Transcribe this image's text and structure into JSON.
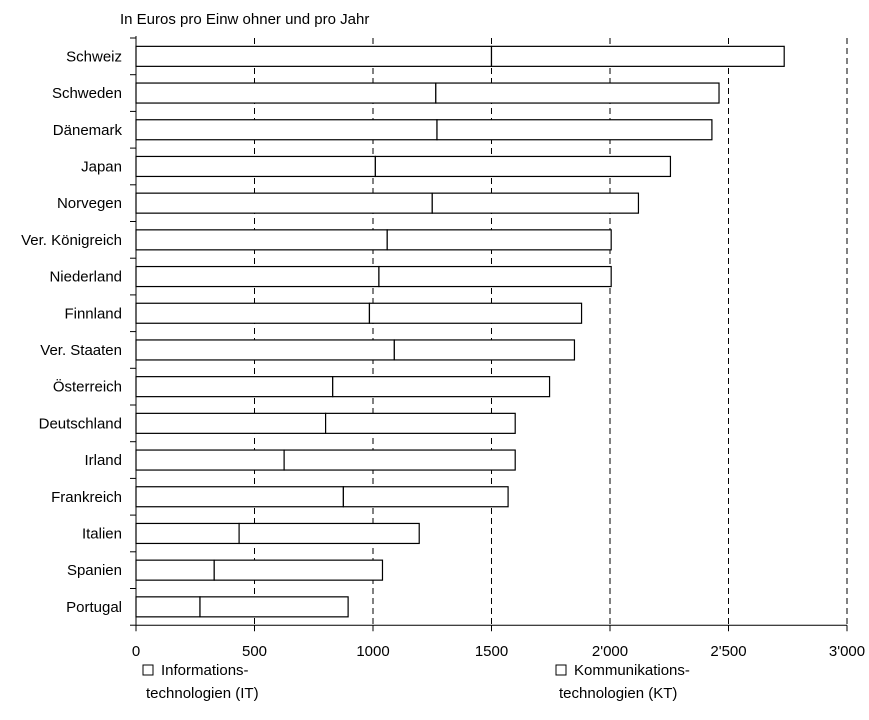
{
  "chart_data": {
    "type": "bar",
    "orientation": "horizontal",
    "stacked": true,
    "subtitle": "In Euros pro Einw ohner und pro Jahr",
    "categories": [
      "Schweiz",
      "Schweden",
      "Dänemark",
      "Japan",
      "Norvegen",
      "Ver. Königreich",
      "Niederland",
      "Finnland",
      "Ver. Staaten",
      "Österreich",
      "Deutschland",
      "Irland",
      "Frankreich",
      "Italien",
      "Spanien",
      "Portugal"
    ],
    "series": [
      {
        "name": "Informations-technologien (IT)",
        "legend_lines": [
          "Informations-",
          "technologien (IT)"
        ],
        "values": [
          1500,
          1265,
          1270,
          1010,
          1250,
          1060,
          1025,
          985,
          1090,
          830,
          800,
          625,
          875,
          435,
          330,
          270
        ]
      },
      {
        "name": "Kommunikations-technologien (KT)",
        "legend_lines": [
          "Kommunikations-",
          "technologien (KT)"
        ],
        "values": [
          1235,
          1195,
          1160,
          1245,
          870,
          945,
          980,
          895,
          760,
          915,
          800,
          975,
          695,
          760,
          710,
          625
        ]
      }
    ],
    "x_tick_labels": [
      "0",
      "500",
      "1000",
      "1500",
      "2'000",
      "2'500",
      "3'000"
    ],
    "x_ticks": [
      0,
      500,
      1000,
      1500,
      2000,
      2500,
      3000
    ],
    "xlim": [
      0,
      3000
    ],
    "grid": "vertical dashed",
    "legend_position": "bottom",
    "colors": {
      "bar_fill": "#ffffff",
      "bar_stroke": "#000000",
      "grid": "#000000"
    }
  }
}
